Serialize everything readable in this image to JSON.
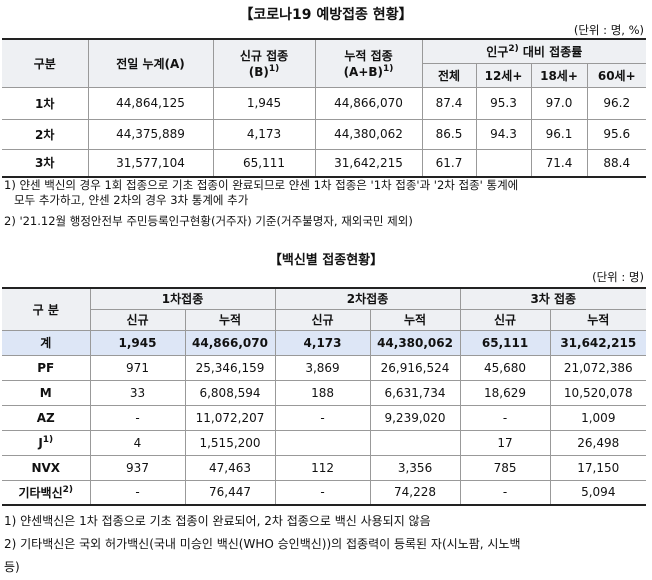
{
  "title1": "【코로나19 예방접종 현황】",
  "unit1": "(단위 : 명, %)",
  "table1": {
    "header": {
      "group": "구분",
      "prev": "전일 누계(A)",
      "new": "신규 접종",
      "new_sub": "(B)",
      "new_sup": "1)",
      "cum": "누적 접종",
      "cum_sub": "(A+B)",
      "cum_sup": "1)",
      "pop": "인구",
      "pop_sup": "2)",
      "pop_rest": "대비 접종률",
      "cols": [
        "전체",
        "12세+",
        "18세+",
        "60세+"
      ]
    },
    "rows": [
      [
        "1차",
        "44,864,125",
        "1,945",
        "44,866,070",
        "87.4",
        "95.3",
        "97.0",
        "96.2"
      ],
      [
        "2차",
        "44,375,889",
        "4,173",
        "44,380,062",
        "86.5",
        "94.3",
        "96.1",
        "95.6"
      ],
      [
        "3차",
        "31,577,104",
        "65,111",
        "31,642,215",
        "61.7",
        null,
        "71.4",
        "88.4"
      ]
    ]
  },
  "notes1": [
    "1) 얀센 백신의 경우 1회 접종으로 기초 접종이 완료되므로 얀센 1차 접종은 '1차 접종'과 '2차 접종' 통계에",
    "모두 추가하고, 얀센 2차의 경우 3차 통계에 추가",
    "2) '21.12월 행정안전부 주민등록인구현황(거주자) 기준(거주불명자, 재외국민 제외)"
  ],
  "title2": "【백신별 접종현황】",
  "unit2": "(단위 : 명)",
  "table2": {
    "header": {
      "group": "구 분",
      "doses": [
        "1차접종",
        "2차접종",
        "3차 접종"
      ],
      "cols": [
        "신규",
        "누적",
        "신규",
        "누적",
        "신규",
        "누적"
      ]
    },
    "rows": [
      {
        "label": "계",
        "values": [
          "1,945",
          "44,866,070",
          "4,173",
          "44,380,062",
          "65,111",
          "31,642,215"
        ]
      },
      {
        "label": "PF",
        "values": [
          "971",
          "25,346,159",
          "3,869",
          "26,916,524",
          "45,680",
          "21,072,386"
        ]
      },
      {
        "label": "M",
        "values": [
          "33",
          "6,808,594",
          "188",
          "6,631,734",
          "18,629",
          "10,520,078"
        ]
      },
      {
        "label": "AZ",
        "values": [
          "-",
          "11,072,207",
          "-",
          "9,239,020",
          "-",
          "1,009"
        ]
      },
      {
        "label": "J",
        "sup": "1)",
        "values": [
          "4",
          "1,515,200",
          null,
          null,
          "17",
          "26,498"
        ]
      },
      {
        "label": "NVX",
        "values": [
          "937",
          "47,463",
          "112",
          "3,356",
          "785",
          "17,150"
        ]
      },
      {
        "label": "기타백신",
        "sup": "2)",
        "values": [
          "-",
          "76,447",
          "-",
          "74,228",
          "-",
          "5,094"
        ]
      }
    ]
  },
  "notes2": [
    "1) 얀센백신은 1차 접종으로 기초 접종이 완료되어, 2차 접종으로 백신 사용되지 않음",
    "2) 기타백신은 국외 허가백신(국내 미승인 백신(WHO 승인백신))의 접종력이 등록된 자(시노팜, 시노백",
    "등)"
  ]
}
